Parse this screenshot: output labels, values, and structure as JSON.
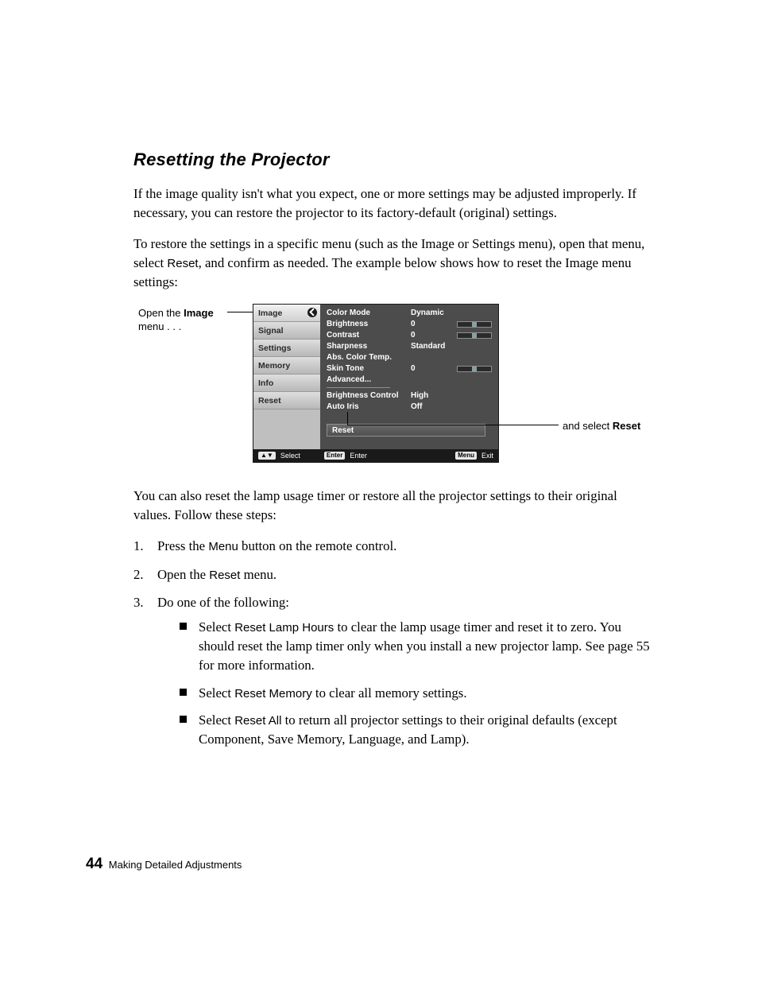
{
  "title": "Resetting the Projector",
  "para1_a": "If the image quality isn't what you expect, one or more settings may be adjusted improperly. If necessary, you can restore the projector to its factory-default (original) settings.",
  "para2_a": "To restore the settings in a specific menu (such as the Image or Settings menu), open that menu, select ",
  "para2_reset": "Reset",
  "para2_b": ", and confirm as needed. The example below shows how to reset the Image menu settings:",
  "callout_left_a": "Open the ",
  "callout_left_b": "Image",
  "callout_left_c": " menu . . .",
  "callout_right_a": "and select ",
  "callout_right_b": "Reset",
  "osd": {
    "tabs": [
      "Image",
      "Signal",
      "Settings",
      "Memory",
      "Info",
      "Reset"
    ],
    "rows": [
      {
        "label": "Color Mode",
        "value": "Dynamic",
        "slider": false
      },
      {
        "label": "Brightness",
        "value": "0",
        "slider": true
      },
      {
        "label": "Contrast",
        "value": "0",
        "slider": true
      },
      {
        "label": "Sharpness",
        "value": "Standard",
        "slider": false
      },
      {
        "label": "Abs. Color Temp.",
        "value": "",
        "slider": false
      },
      {
        "label": "Skin Tone",
        "value": "0",
        "slider": true
      },
      {
        "label": "Advanced...",
        "value": "",
        "slider": false,
        "divider": true
      },
      {
        "label": "Brightness Control",
        "value": "High",
        "slider": false
      },
      {
        "label": "Auto Iris",
        "value": "Off",
        "slider": false
      }
    ],
    "reset_label": "Reset",
    "footer": {
      "select_key": "▲▼",
      "select": "Select",
      "enter_key": "Enter",
      "enter": "Enter",
      "exit_key": "Menu",
      "exit": "Exit"
    },
    "colors": {
      "panel_bg": "#4c4c4c",
      "left_bg": "#cfcfcf",
      "frame": "#2f2f2f",
      "footer_bg": "#1a1a1a",
      "text": "#ffffff"
    }
  },
  "para3": "You can also reset the lamp usage timer or restore all the projector settings to their original values. Follow these steps:",
  "steps": {
    "s1_a": "Press the ",
    "s1_menu": "Menu",
    "s1_b": " button on the remote control.",
    "s2_a": "Open the ",
    "s2_reset": "Reset",
    "s2_b": " menu.",
    "s3": "Do one of the following:",
    "b1_a": "Select ",
    "b1_key": "Reset Lamp Hours",
    "b1_b": " to clear the lamp usage timer and reset it to zero. You should reset the lamp timer only when you install a new projector lamp. See page 55 for more information.",
    "b2_a": "Select ",
    "b2_key": "Reset Memory",
    "b2_b": " to clear all memory settings.",
    "b3_a": "Select ",
    "b3_key": "Reset All",
    "b3_b": " to return all projector settings to their original defaults (except Component, Save Memory, Language, and Lamp)."
  },
  "footer": {
    "page": "44",
    "chapter": "Making Detailed Adjustments"
  }
}
